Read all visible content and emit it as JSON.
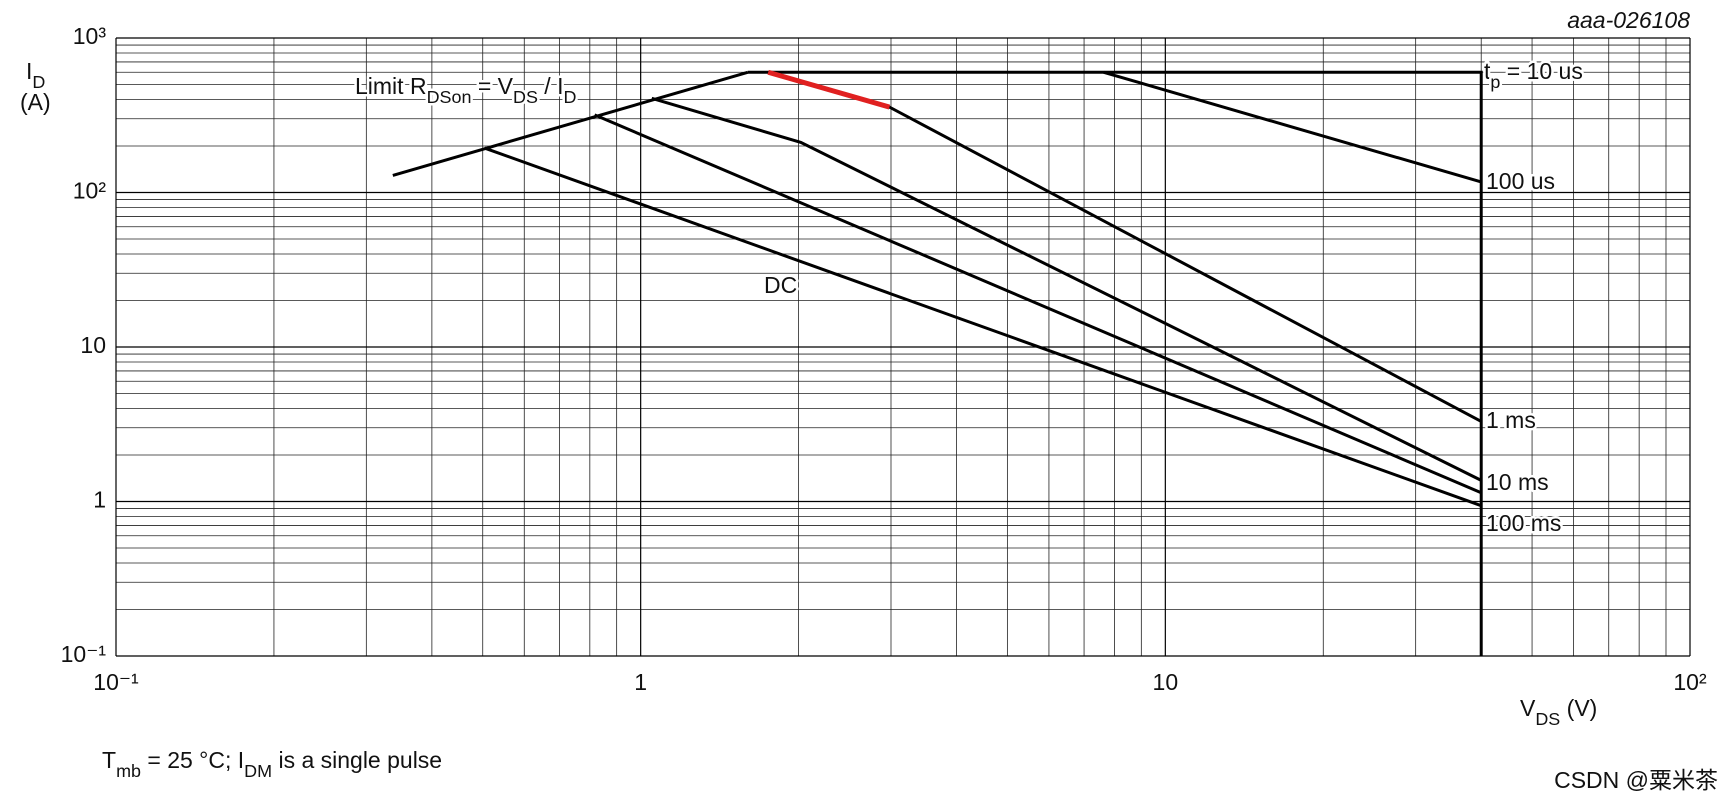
{
  "chart_data": {
    "type": "line",
    "code": "aaa-026108",
    "y_label": [
      "I",
      "D"
    ],
    "y_unit": "(A)",
    "x_label": [
      "V",
      "DS",
      " (V)"
    ],
    "annotation": [
      "Limit R",
      "DSon",
      " = V",
      "DS",
      " / I",
      "D"
    ],
    "footnote": [
      "T",
      "mb",
      " = 25 °C; I",
      "DM",
      " is a single pulse"
    ],
    "watermark": "CSDN @粟米茶",
    "log_x": true,
    "log_y": true,
    "grid": true,
    "minor_grid": true,
    "xlim": [
      0.1,
      100
    ],
    "ylim": [
      0.1,
      1000
    ],
    "xticks": [
      {
        "value": 0.1,
        "label": "10⁻¹"
      },
      1,
      10,
      {
        "value": 100,
        "label": "10²"
      }
    ],
    "yticks": [
      {
        "value": 0.1,
        "label": "10⁻¹"
      },
      1,
      10,
      {
        "value": 100,
        "label": "10²"
      },
      {
        "value": 1000,
        "label": "10³"
      }
    ],
    "series": [
      {
        "color": "#000000",
        "x": [
          0.337,
          1.6
        ],
        "values": [
          129,
          600
        ]
      },
      {
        "name": [
          "t",
          "p",
          " = 10 us"
        ],
        "color": "#000000",
        "x": [
          1.6,
          40,
          40
        ],
        "values": [
          600,
          600,
          0.1
        ]
      },
      {
        "name": [
          "100 us"
        ],
        "color": "#000000",
        "x": [
          7.63,
          40
        ],
        "values": [
          600,
          117
        ]
      },
      {
        "name": [
          "1 ms"
        ],
        "color": "#000000",
        "x": [
          1.75,
          2.98,
          40
        ],
        "values": [
          600,
          357,
          3.3
        ]
      },
      {
        "name": [
          "10 ms"
        ],
        "color": "#000000",
        "x": [
          1.05,
          2.02,
          40
        ],
        "values": [
          407,
          211,
          1.37
        ]
      },
      {
        "name": [
          "100 ms"
        ],
        "color": "#000000",
        "x": [
          0.817,
          40
        ],
        "values": [
          318,
          1.14
        ]
      },
      {
        "name": [
          "DC"
        ],
        "color": "#000000",
        "x": [
          0.504,
          40
        ],
        "values": [
          194,
          0.94
        ]
      },
      {
        "color": "#e02020",
        "x": [
          1.75,
          2.98
        ],
        "values": [
          600,
          357
        ]
      }
    ]
  }
}
